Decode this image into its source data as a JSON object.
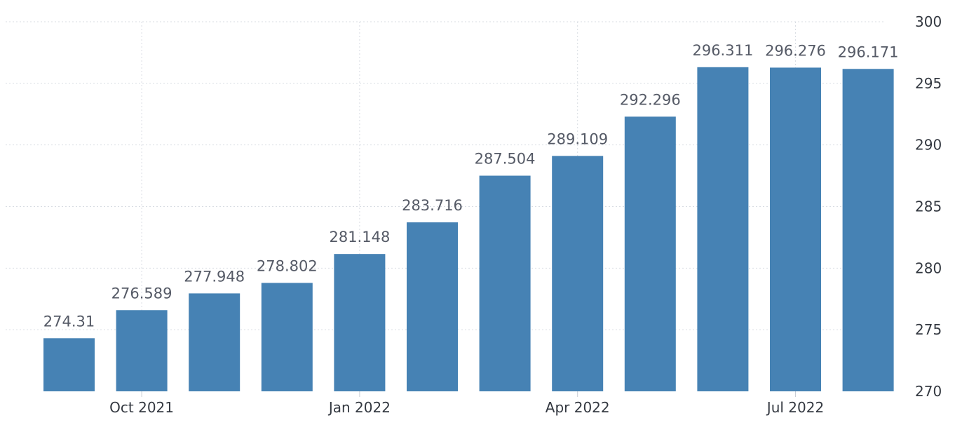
{
  "chart_data": {
    "type": "bar",
    "categories": [
      "Sep 2021",
      "Oct 2021",
      "Nov 2021",
      "Dec 2021",
      "Jan 2022",
      "Feb 2022",
      "Mar 2022",
      "Apr 2022",
      "May 2022",
      "Jun 2022",
      "Jul 2022",
      "Aug 2022"
    ],
    "values": [
      274.31,
      276.589,
      277.948,
      278.802,
      281.148,
      283.716,
      287.504,
      289.109,
      292.296,
      296.311,
      296.276,
      296.171
    ],
    "value_labels": [
      "274.31",
      "276.589",
      "277.948",
      "278.802",
      "281.148",
      "283.716",
      "287.504",
      "289.109",
      "292.296",
      "296.311",
      "296.276",
      "296.171"
    ],
    "x_tick_labels": [
      {
        "label": "Oct 2021",
        "category": "Oct 2021"
      },
      {
        "label": "Jan 2022",
        "category": "Jan 2022"
      },
      {
        "label": "Apr 2022",
        "category": "Apr 2022"
      },
      {
        "label": "Jul 2022",
        "category": "Jul 2022"
      }
    ],
    "y_ticks": [
      270,
      275,
      280,
      285,
      290,
      295,
      300
    ],
    "ylim": [
      270,
      300
    ],
    "y_axis_position": "right",
    "grid": true,
    "bar_color": "#4682b4",
    "title": "",
    "xlabel": "",
    "ylabel": ""
  }
}
